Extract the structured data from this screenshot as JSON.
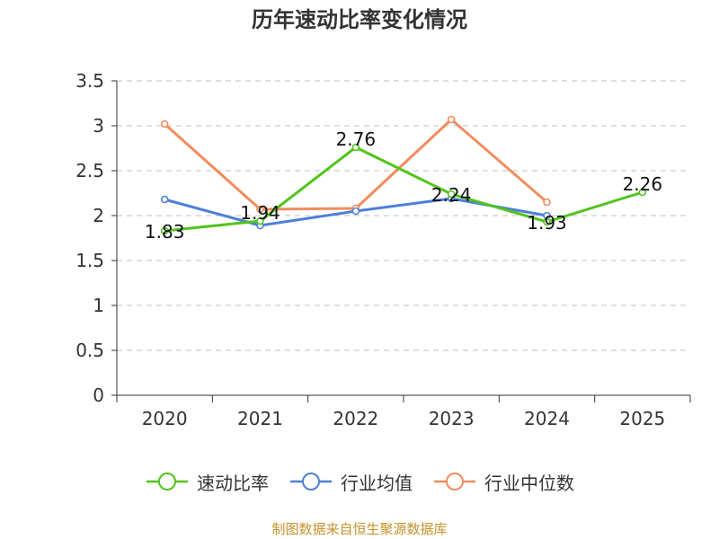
{
  "chart_data": {
    "type": "line",
    "title": "历年速动比率变化情况",
    "categories": [
      "2020",
      "2021",
      "2022",
      "2023",
      "2024",
      "2025"
    ],
    "ylim": [
      0,
      3.5
    ],
    "yticks": [
      "0",
      "0.5",
      "1",
      "1.5",
      "2",
      "2.5",
      "3",
      "3.5"
    ],
    "grid": true,
    "legend_position": "bottom",
    "series": [
      {
        "name": "速动比率",
        "color": "#52c41a",
        "values": [
          1.83,
          1.94,
          2.76,
          2.24,
          1.93,
          2.26
        ],
        "labels": [
          "1.83",
          "1.94",
          "2.76",
          "2.24",
          "1.93",
          "2.26"
        ]
      },
      {
        "name": "行业均值",
        "color": "#4e7fd8",
        "values": [
          2.18,
          1.89,
          2.05,
          2.19,
          2.0,
          null
        ]
      },
      {
        "name": "行业中位数",
        "color": "#f28c5c",
        "values": [
          3.02,
          2.07,
          2.08,
          3.07,
          2.15,
          null
        ]
      }
    ]
  },
  "source": "制图数据来自恒生聚源数据库"
}
